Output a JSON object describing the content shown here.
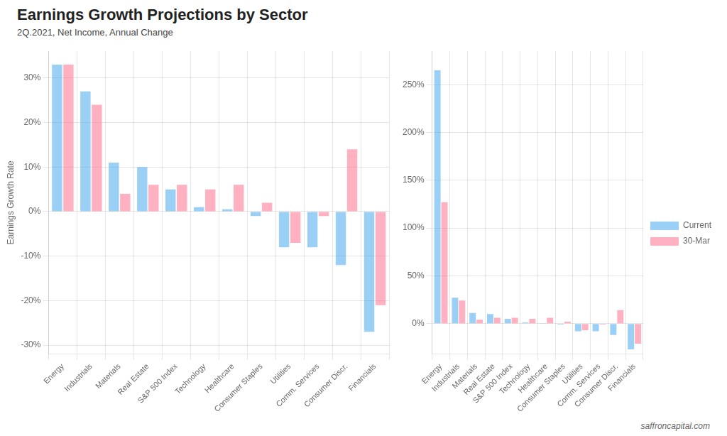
{
  "chart_data": [
    {
      "type": "bar",
      "title": "Earnings Growth Projections by Sector",
      "subtitle": "2Q.2021, Net Income, Annual Change",
      "ylabel": "Earnings Growth Rate",
      "categories": [
        "Energy",
        "Industrials",
        "Materials",
        "Real Estate",
        "S&P 500 Index",
        "Technology",
        "Healthcare",
        "Consumer Staples",
        "Utilities",
        "Comm. Services",
        "Consumer Discr.",
        "Financials"
      ],
      "series": [
        {
          "name": "Current",
          "values": [
            33.0,
            27.0,
            11.0,
            10.0,
            5.0,
            1.0,
            0.5,
            -1.0,
            -8.0,
            -8.0,
            -12.0,
            -27.0
          ]
        },
        {
          "name": "30-Mar",
          "values": [
            33.0,
            24.0,
            4.0,
            6.0,
            6.0,
            5.0,
            6.0,
            2.0,
            -7.0,
            -1.0,
            14.0,
            -21.0
          ]
        }
      ],
      "ylim": [
        -32,
        36
      ],
      "yticks": [
        {
          "value": -30,
          "label": "-30%"
        },
        {
          "value": -20,
          "label": "-20%"
        },
        {
          "value": -10,
          "label": "-10%"
        },
        {
          "value": 0,
          "label": "0%"
        },
        {
          "value": 10,
          "label": "10%"
        },
        {
          "value": 20,
          "label": "20%"
        },
        {
          "value": 30,
          "label": "30%"
        }
      ],
      "grid": true
    },
    {
      "type": "bar",
      "categories": [
        "Energy",
        "Industrials",
        "Materials",
        "Real Estate",
        "S&P 500 Index",
        "Technology",
        "Healthcare",
        "Consumer Staples",
        "Utilities",
        "Comm. Services",
        "Consumer Discr.",
        "Financials"
      ],
      "series": [
        {
          "name": "Current",
          "values": [
            265.0,
            27.0,
            11.0,
            10.0,
            5.0,
            1.0,
            0.5,
            -1.0,
            -8.0,
            -8.0,
            -12.0,
            -27.0
          ]
        },
        {
          "name": "30-Mar",
          "values": [
            127.0,
            24.0,
            4.0,
            6.0,
            6.0,
            5.0,
            6.0,
            2.0,
            -7.0,
            -1.0,
            14.0,
            -21.0
          ]
        }
      ],
      "ylim": [
        -32,
        285
      ],
      "yticks": [
        {
          "value": 0,
          "label": "0%"
        },
        {
          "value": 50,
          "label": "50%"
        },
        {
          "value": 100,
          "label": "100%"
        },
        {
          "value": 150,
          "label": "150%"
        },
        {
          "value": 200,
          "label": "200%"
        },
        {
          "value": 250,
          "label": "250%"
        }
      ],
      "grid": true,
      "legend": "right",
      "annotations": [
        "saffroncapital.com"
      ]
    }
  ]
}
